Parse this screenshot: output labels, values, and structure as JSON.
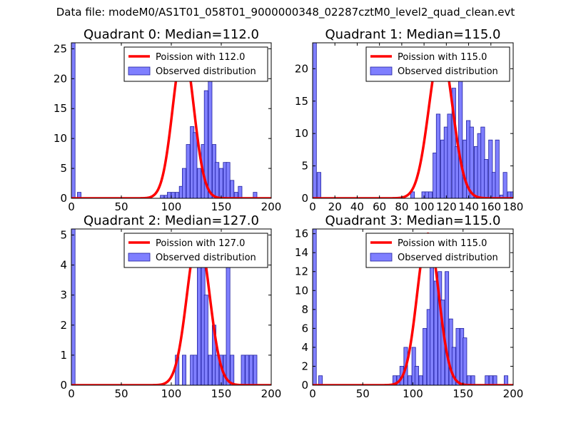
{
  "figure": {
    "suptitle": "Data file: modeM0/AS1T01_058T01_9000000348_02287cztM0_level2_quad_clean.evt"
  },
  "colors": {
    "poisson_line": "#ff0000",
    "hist_fill": "#7f7fff",
    "hist_edge": "#2020a0",
    "axis": "#000000"
  },
  "chart_data": [
    {
      "type": "bar",
      "title": "Quadrant 0: Median=112.0",
      "xlim": [
        0,
        200
      ],
      "ylim": [
        0,
        26
      ],
      "xticks": [
        0,
        50,
        100,
        150,
        200
      ],
      "xtick_labels": [
        "0",
        "50",
        "100",
        "150",
        "200"
      ],
      "yticks": [
        0,
        5,
        10,
        15,
        20,
        25
      ],
      "ytick_labels": [
        "0",
        "5",
        "10",
        "15",
        "20",
        "25"
      ],
      "legend_location": "top-right",
      "legend": [
        "Poission with 112.0",
        "Observed distribution"
      ],
      "poisson": {
        "mean": 112.0,
        "peak": 25
      },
      "bin_width": 3.7,
      "histogram": [
        [
          0,
          26
        ],
        [
          6,
          1
        ],
        [
          89,
          0.5
        ],
        [
          93,
          0.5
        ],
        [
          96,
          1
        ],
        [
          100,
          1
        ],
        [
          104,
          1
        ],
        [
          108,
          2
        ],
        [
          111,
          5
        ],
        [
          115,
          9
        ],
        [
          119,
          12
        ],
        [
          122,
          11
        ],
        [
          126,
          5
        ],
        [
          130,
          9
        ],
        [
          133,
          18
        ],
        [
          137,
          21
        ],
        [
          141,
          9
        ],
        [
          144,
          6
        ],
        [
          148,
          5
        ],
        [
          152,
          6
        ],
        [
          155,
          6
        ],
        [
          159,
          3
        ],
        [
          163,
          1
        ],
        [
          167,
          2
        ],
        [
          182,
          1
        ]
      ]
    },
    {
      "type": "bar",
      "title": "Quadrant 1: Median=115.0",
      "xlim": [
        0,
        180
      ],
      "ylim": [
        0,
        24
      ],
      "xticks": [
        0,
        20,
        40,
        60,
        80,
        100,
        120,
        140,
        160,
        180
      ],
      "xtick_labels": [
        "0",
        "20",
        "40",
        "60",
        "80",
        "100",
        "120",
        "140",
        "160",
        "180"
      ],
      "yticks": [
        0,
        5,
        10,
        15,
        20
      ],
      "ytick_labels": [
        "0",
        "5",
        "10",
        "15",
        "20"
      ],
      "legend_location": "top-right",
      "legend": [
        "Poission with 115.0",
        "Observed distribution"
      ],
      "poisson": {
        "mean": 115.0,
        "peak": 23
      },
      "bin_width": 3.4,
      "histogram": [
        [
          0,
          24
        ],
        [
          4,
          4
        ],
        [
          88,
          1
        ],
        [
          98,
          1
        ],
        [
          101,
          1
        ],
        [
          104,
          1
        ],
        [
          108,
          7
        ],
        [
          111,
          13
        ],
        [
          115,
          9
        ],
        [
          118,
          11
        ],
        [
          121,
          13
        ],
        [
          125,
          17
        ],
        [
          128,
          8
        ],
        [
          131,
          23
        ],
        [
          135,
          9
        ],
        [
          138,
          12
        ],
        [
          141,
          11
        ],
        [
          145,
          8
        ],
        [
          148,
          10
        ],
        [
          151,
          11
        ],
        [
          154,
          6
        ],
        [
          158,
          9
        ],
        [
          161,
          4
        ],
        [
          164,
          9
        ],
        [
          168,
          0.5
        ],
        [
          171,
          4
        ],
        [
          175,
          1
        ],
        [
          178,
          1
        ]
      ]
    },
    {
      "type": "bar",
      "title": "Quadrant 2: Median=127.0",
      "xlim": [
        0,
        200
      ],
      "ylim": [
        0,
        5.2
      ],
      "xticks": [
        0,
        50,
        100,
        150,
        200
      ],
      "xtick_labels": [
        "0",
        "50",
        "100",
        "150",
        "200"
      ],
      "yticks": [
        0,
        1,
        2,
        3,
        4,
        5
      ],
      "ytick_labels": [
        "0",
        "1",
        "2",
        "3",
        "4",
        "5"
      ],
      "legend_location": "top-right",
      "legend": [
        "Poission with 127.0",
        "Observed distribution"
      ],
      "poisson": {
        "mean": 127.0,
        "peak": 5
      },
      "bin_width": 3.7,
      "histogram": [
        [
          0,
          5.2
        ],
        [
          104,
          1
        ],
        [
          111,
          1
        ],
        [
          119,
          1
        ],
        [
          122,
          1
        ],
        [
          126,
          4
        ],
        [
          130,
          5
        ],
        [
          133,
          3
        ],
        [
          137,
          1
        ],
        [
          141,
          2
        ],
        [
          144,
          1
        ],
        [
          148,
          1
        ],
        [
          152,
          1
        ],
        [
          155,
          4
        ],
        [
          159,
          1
        ],
        [
          170,
          1
        ],
        [
          174,
          1
        ],
        [
          178,
          1
        ],
        [
          182,
          1
        ]
      ]
    },
    {
      "type": "bar",
      "title": "Quadrant 3: Median=115.0",
      "xlim": [
        0,
        200
      ],
      "ylim": [
        0,
        16.5
      ],
      "xticks": [
        0,
        50,
        100,
        150,
        200
      ],
      "xtick_labels": [
        "0",
        "50",
        "100",
        "150",
        "200"
      ],
      "yticks": [
        0,
        2,
        4,
        6,
        8,
        10,
        12,
        14,
        16
      ],
      "ytick_labels": [
        "0",
        "2",
        "4",
        "6",
        "8",
        "10",
        "12",
        "14",
        "16"
      ],
      "legend_location": "top-right",
      "legend": [
        "Poission with 115.0",
        "Observed distribution"
      ],
      "poisson": {
        "mean": 115.0,
        "peak": 16
      },
      "bin_width": 3.7,
      "histogram": [
        [
          0,
          16.5
        ],
        [
          6,
          1
        ],
        [
          80,
          1
        ],
        [
          84,
          1
        ],
        [
          87,
          2
        ],
        [
          91,
          4
        ],
        [
          95,
          1
        ],
        [
          99,
          4
        ],
        [
          102,
          2
        ],
        [
          106,
          1
        ],
        [
          110,
          6
        ],
        [
          114,
          8
        ],
        [
          117,
          13
        ],
        [
          121,
          11
        ],
        [
          125,
          12
        ],
        [
          128,
          9
        ],
        [
          132,
          12
        ],
        [
          136,
          7
        ],
        [
          139,
          4
        ],
        [
          143,
          6
        ],
        [
          147,
          6
        ],
        [
          150,
          5
        ],
        [
          154,
          1
        ],
        [
          158,
          1
        ],
        [
          172,
          1
        ],
        [
          176,
          1
        ],
        [
          180,
          1
        ],
        [
          191,
          1
        ]
      ]
    }
  ]
}
